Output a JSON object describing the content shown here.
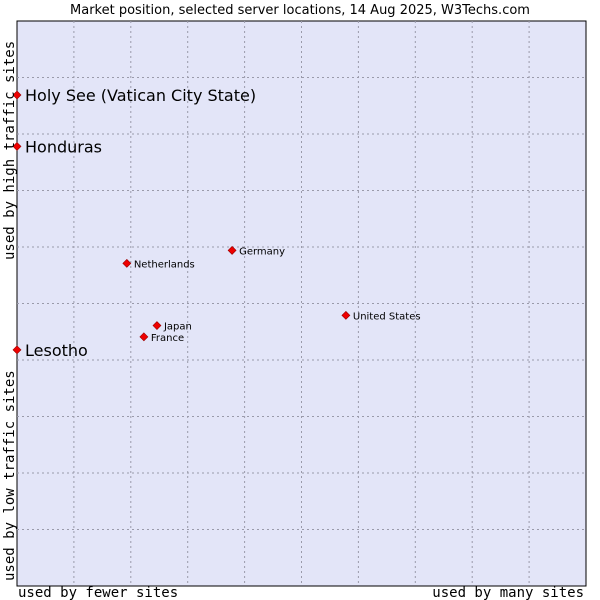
{
  "chart_data": {
    "type": "scatter",
    "title": "Market position, selected server locations, 14 Aug 2025, W3Techs.com",
    "xlabel_left": "used by fewer sites",
    "xlabel_right": "used by many sites",
    "ylabel_bottom": "used by low traffic sites",
    "ylabel_top": "used by high traffic sites",
    "xlim": [
      0,
      100
    ],
    "ylim": [
      0,
      100
    ],
    "grid": true,
    "colors": {
      "plot_bg": "#e3e5f8",
      "grid": "#9a9aaa",
      "marker": "#ee0000",
      "frame": "#000000"
    },
    "points": [
      {
        "label": "Holy See (Vatican City State)",
        "x": 0,
        "y": 86.9,
        "emphasis": true
      },
      {
        "label": "Honduras",
        "x": 0,
        "y": 77.8,
        "emphasis": true
      },
      {
        "label": "Germany",
        "x": 37.8,
        "y": 59.4,
        "emphasis": false
      },
      {
        "label": "Netherlands",
        "x": 19.3,
        "y": 57.1,
        "emphasis": false
      },
      {
        "label": "United States",
        "x": 57.8,
        "y": 47.9,
        "emphasis": false
      },
      {
        "label": "Japan",
        "x": 24.6,
        "y": 46.1,
        "emphasis": false
      },
      {
        "label": "France",
        "x": 22.3,
        "y": 44.1,
        "emphasis": false
      },
      {
        "label": "Lesotho",
        "x": 0,
        "y": 41.8,
        "emphasis": true
      }
    ]
  }
}
